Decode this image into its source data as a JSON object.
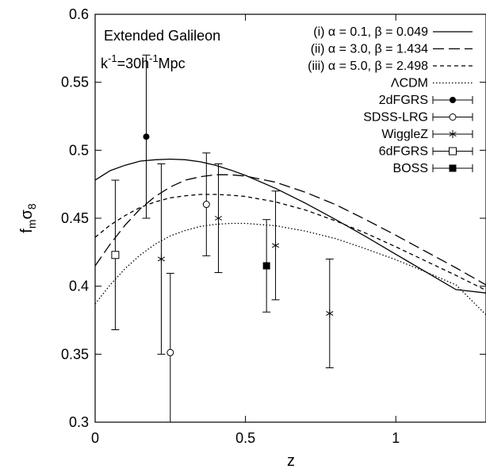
{
  "chart_data": {
    "type": "line",
    "xlabel": "z",
    "ylabel_main": "f",
    "ylabel_sub1": "m",
    "ylabel_mid": "σ",
    "ylabel_sub2": "8",
    "xlim": [
      0,
      1.3
    ],
    "ylim": [
      0.3,
      0.6
    ],
    "xticks": [
      0,
      0.5,
      1
    ],
    "xtick_labels": [
      "0",
      "0.5",
      "1"
    ],
    "yticks": [
      0.3,
      0.35,
      0.4,
      0.45,
      0.5,
      0.55,
      0.6
    ],
    "ytick_labels": [
      "0.3",
      "0.35",
      "0.4",
      "0.45",
      "0.5",
      "0.55",
      "0.6"
    ],
    "grid": false,
    "legend_position": "top-right",
    "annotation_line1": "Extended Galileon",
    "annotation_line2_prefix": "k",
    "annotation_line2_sup1": "-1",
    "annotation_line2_mid": "=30h",
    "annotation_line2_sup2": "-1",
    "annotation_line2_suffix": "Mpc",
    "series": [
      {
        "name": "(i) α = 0.1, β = 0.049",
        "style": "solid",
        "x": [
          0,
          0.05,
          0.1,
          0.15,
          0.2,
          0.25,
          0.3,
          0.35,
          0.4,
          0.45,
          0.5,
          0.6,
          0.7,
          0.8,
          0.9,
          1.0,
          1.1,
          1.2,
          1.3
        ],
        "y": [
          0.478,
          0.485,
          0.489,
          0.492,
          0.493,
          0.4935,
          0.493,
          0.4915,
          0.489,
          0.4855,
          0.4815,
          0.472,
          0.461,
          0.449,
          0.4365,
          0.4235,
          0.4105,
          0.3975,
          0.395
        ]
      },
      {
        "name": "(ii) α = 3.0, β = 1.434",
        "style": "long-dash",
        "x": [
          0,
          0.05,
          0.1,
          0.15,
          0.2,
          0.25,
          0.3,
          0.35,
          0.4,
          0.45,
          0.5,
          0.6,
          0.7,
          0.8,
          0.9,
          1.0,
          1.1,
          1.2,
          1.3
        ],
        "y": [
          0.415,
          0.431,
          0.445,
          0.457,
          0.466,
          0.473,
          0.478,
          0.4805,
          0.482,
          0.482,
          0.481,
          0.4765,
          0.469,
          0.46,
          0.449,
          0.4375,
          0.4255,
          0.4135,
          0.401
        ]
      },
      {
        "name": "(iii) α = 5.0, β = 2.498",
        "style": "short-dash",
        "x": [
          0,
          0.05,
          0.1,
          0.15,
          0.2,
          0.25,
          0.3,
          0.35,
          0.4,
          0.45,
          0.5,
          0.6,
          0.7,
          0.8,
          0.9,
          1.0,
          1.1,
          1.2,
          1.3
        ],
        "y": [
          0.436,
          0.445,
          0.452,
          0.458,
          0.462,
          0.465,
          0.4665,
          0.4675,
          0.4675,
          0.467,
          0.466,
          0.462,
          0.456,
          0.448,
          0.439,
          0.429,
          0.4185,
          0.408,
          0.397
        ]
      },
      {
        "name": "ΛCDM",
        "style": "dotted",
        "x": [
          0,
          0.05,
          0.1,
          0.15,
          0.2,
          0.25,
          0.3,
          0.35,
          0.4,
          0.45,
          0.5,
          0.6,
          0.7,
          0.8,
          0.9,
          1.0,
          1.1,
          1.2,
          1.3
        ],
        "y": [
          0.387,
          0.401,
          0.413,
          0.423,
          0.431,
          0.437,
          0.441,
          0.444,
          0.4455,
          0.4462,
          0.4462,
          0.4445,
          0.4405,
          0.435,
          0.4275,
          0.4195,
          0.4105,
          0.401,
          0.379
        ]
      }
    ],
    "datasets": [
      {
        "name": "2dFGRS",
        "marker": "filled-circle",
        "points": [
          {
            "x": 0.17,
            "y": 0.51,
            "err": 0.06
          }
        ]
      },
      {
        "name": "SDSS-LRG",
        "marker": "open-circle",
        "points": [
          {
            "x": 0.25,
            "y": 0.3512,
            "err": 0.0583
          },
          {
            "x": 0.37,
            "y": 0.4602,
            "err": 0.0378
          }
        ]
      },
      {
        "name": "WiggleZ",
        "marker": "asterisk",
        "points": [
          {
            "x": 0.22,
            "y": 0.42,
            "err": 0.07
          },
          {
            "x": 0.41,
            "y": 0.45,
            "err": 0.04
          },
          {
            "x": 0.6,
            "y": 0.43,
            "err": 0.04
          },
          {
            "x": 0.78,
            "y": 0.38,
            "err": 0.04
          }
        ]
      },
      {
        "name": "6dFGRS",
        "marker": "open-square",
        "points": [
          {
            "x": 0.067,
            "y": 0.423,
            "err": 0.055
          }
        ]
      },
      {
        "name": "BOSS",
        "marker": "filled-square",
        "points": [
          {
            "x": 0.57,
            "y": 0.415,
            "err": 0.034
          }
        ]
      }
    ]
  }
}
